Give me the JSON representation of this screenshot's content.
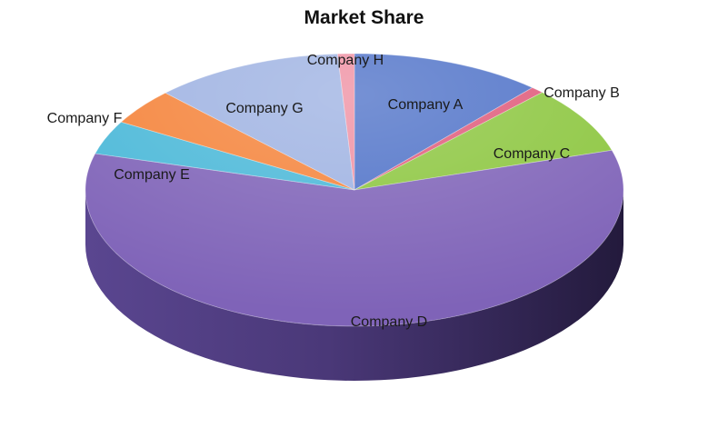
{
  "chart_data": {
    "type": "pie",
    "title": "Market Share",
    "categories": [
      "Company A",
      "Company B",
      "Company C",
      "Company D",
      "Company E",
      "Company F",
      "Company G",
      "Company H"
    ],
    "values": [
      11.5,
      0.8,
      8.0,
      59.0,
      4.0,
      4.3,
      11.4,
      1.0
    ],
    "colors": [
      "#4f72c8",
      "#e05a7a",
      "#8cc63f",
      "#7f63b8",
      "#4ab8d8",
      "#f5833a",
      "#9eb2e2",
      "#ef8fa2"
    ],
    "style": "3d"
  }
}
